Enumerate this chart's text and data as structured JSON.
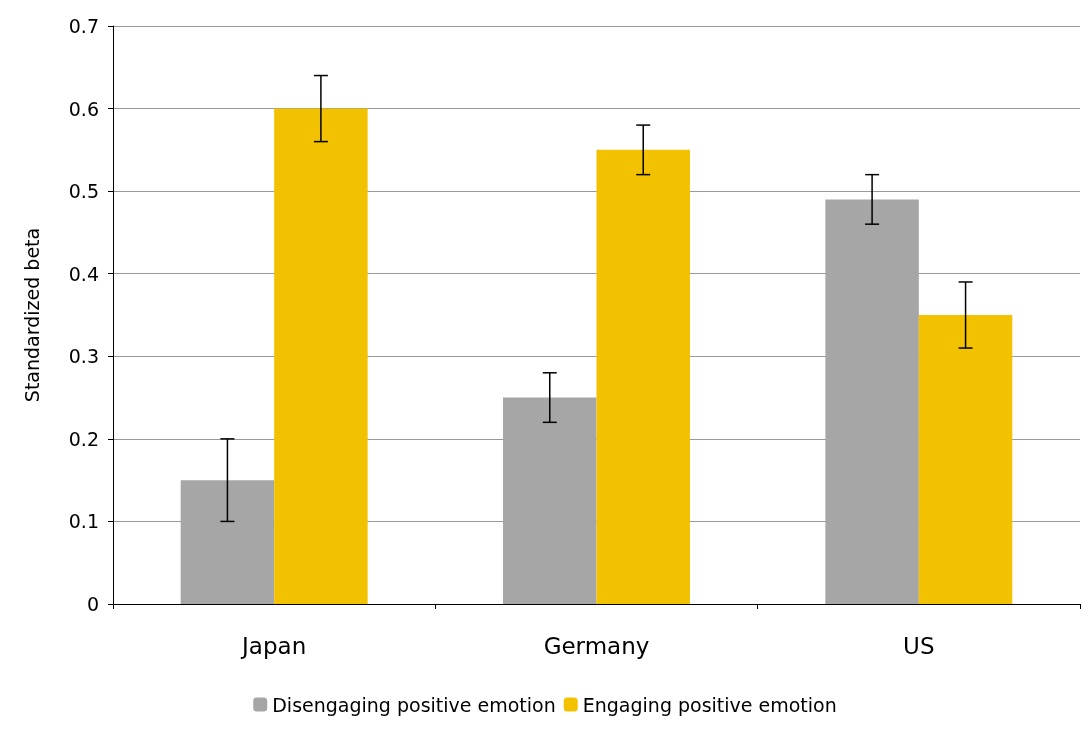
{
  "chart_data": {
    "type": "bar",
    "ylabel": "Standardized beta",
    "categories": [
      "Japan",
      "Germany",
      "US"
    ],
    "series": [
      {
        "name": "Disengaging positive emotion",
        "color": "#a6a6a6",
        "values": [
          0.15,
          0.25,
          0.49
        ],
        "errors": [
          [
            0.1,
            0.2
          ],
          [
            0.22,
            0.28
          ],
          [
            0.46,
            0.52
          ]
        ]
      },
      {
        "name": "Engaging positive emotion",
        "color": "#f2c200",
        "values": [
          0.6,
          0.55,
          0.35
        ],
        "errors": [
          [
            0.56,
            0.64
          ],
          [
            0.52,
            0.58
          ],
          [
            0.31,
            0.39
          ]
        ]
      }
    ],
    "ylim": [
      0,
      0.7
    ],
    "yticks": [
      0,
      0.1,
      0.2,
      0.3,
      0.4,
      0.5,
      0.6,
      0.7
    ],
    "grid": "y",
    "legend": "bottom"
  }
}
